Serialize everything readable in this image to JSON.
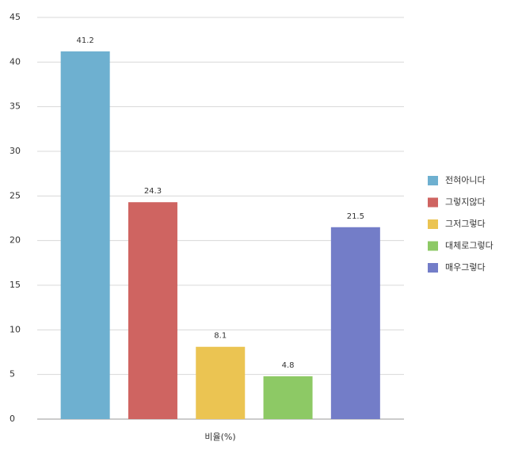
{
  "chart_data": {
    "type": "bar",
    "x_label": "비율(%)",
    "series": [
      {
        "name": "전혀아니다",
        "color": "#6eb0d0",
        "values": [
          41.2
        ]
      },
      {
        "name": "그렇지않다",
        "color": "#cf6461",
        "values": [
          24.3
        ]
      },
      {
        "name": "그저그렇다",
        "color": "#ebc452",
        "values": [
          8.1
        ]
      },
      {
        "name": "대체로그렇다",
        "color": "#8dc965",
        "values": [
          4.8
        ]
      },
      {
        "name": "매우그렇다",
        "color": "#737dc8",
        "values": [
          21.5
        ]
      }
    ],
    "ylim": [
      0,
      45
    ],
    "yticks": [
      0,
      5,
      10,
      15,
      20,
      25,
      30,
      35,
      40,
      45
    ],
    "grid": true,
    "legend": "right"
  }
}
